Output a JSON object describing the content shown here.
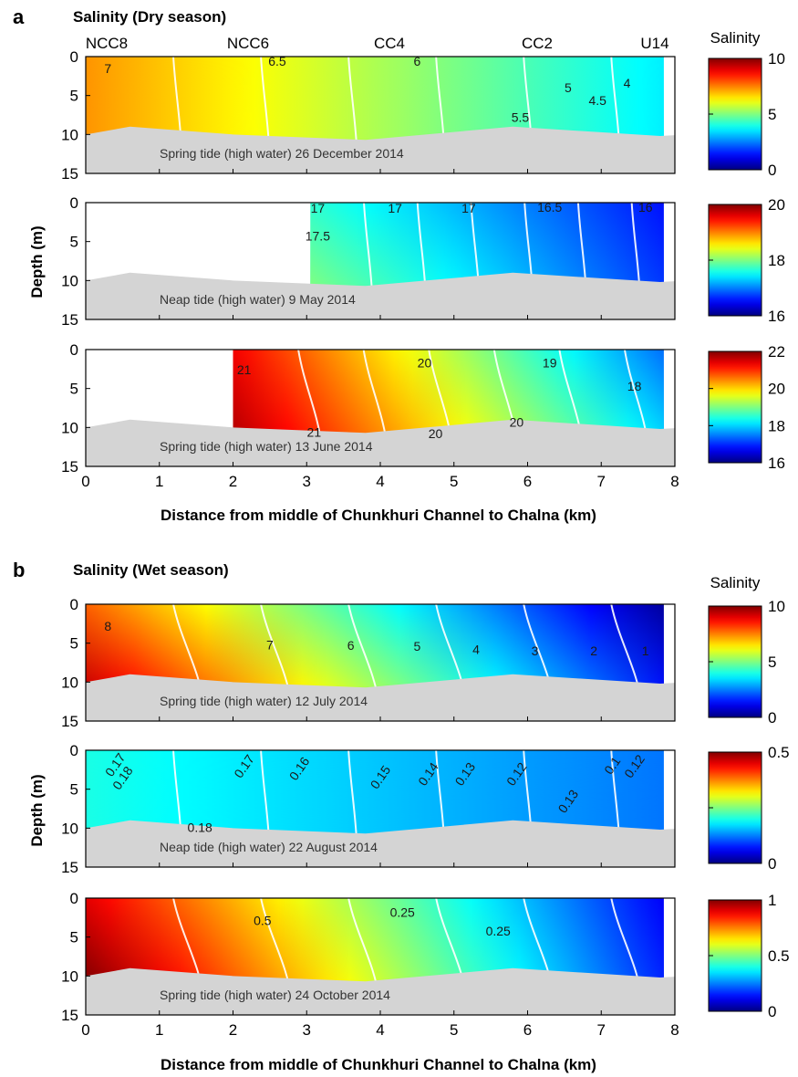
{
  "figure": {
    "section_a": {
      "letter": "a",
      "title": "Salinity (Dry season)"
    },
    "section_b": {
      "letter": "b",
      "title": "Salinity (Wet season)"
    },
    "stations": [
      "NCC8",
      "NCC6",
      "CC4",
      "CC2",
      "U14"
    ],
    "depth_label": "Depth (m)",
    "distance_label": "Distance from middle of Chunkhuri Channel to Chalna (km)",
    "colorbar_title": "Salinity"
  },
  "chart_data": [
    {
      "type": "heatmap",
      "group": "a",
      "title": "Spring tide (high water) 26 December 2014",
      "xlim": [
        0,
        8
      ],
      "ylim": [
        15,
        0
      ],
      "xticks": [
        "0",
        "1",
        "2",
        "3",
        "4",
        "5",
        "6",
        "7",
        "8"
      ],
      "yticks": [
        "0",
        "5",
        "10",
        "15"
      ],
      "data_xrange": [
        0,
        7.85
      ],
      "left_bottom": 9.5,
      "right_bottom": 8.5,
      "cmin": 0,
      "cmax": 10,
      "colorbar_ticks": [
        "10",
        "5",
        "0"
      ],
      "surface": {
        "x": [
          0,
          7.85
        ],
        "values": [
          7.3,
          3.6
        ]
      },
      "bottom": {
        "x": [
          0,
          7.85
        ],
        "values": [
          7.3,
          3.6
        ]
      },
      "contour_labels": [
        {
          "text": "7",
          "x": 0.3,
          "y": 1.5
        },
        {
          "text": "6.5",
          "x": 2.6,
          "y": 0.6
        },
        {
          "text": "6",
          "x": 4.5,
          "y": 0.6
        },
        {
          "text": "5.5",
          "x": 5.9,
          "y": 7.8
        },
        {
          "text": "5",
          "x": 6.55,
          "y": 4.0
        },
        {
          "text": "4.5",
          "x": 6.95,
          "y": 5.6
        },
        {
          "text": "4",
          "x": 7.35,
          "y": 3.4
        }
      ],
      "seabed": {
        "x": [
          0,
          0.6,
          2.0,
          3.8,
          5.8,
          7.8,
          8.0
        ],
        "depth": [
          10.0,
          9.0,
          10.0,
          10.7,
          9.0,
          10.2,
          10.1
        ]
      }
    },
    {
      "type": "heatmap",
      "group": "a",
      "title": "Neap tide (high water) 9 May 2014",
      "xlim": [
        0,
        8
      ],
      "ylim": [
        15,
        0
      ],
      "xticks": [
        "0",
        "1",
        "2",
        "3",
        "4",
        "5",
        "6",
        "7",
        "8"
      ],
      "yticks": [
        "0",
        "5",
        "10",
        "15"
      ],
      "data_xrange": [
        3.05,
        7.85
      ],
      "left_bottom": 10.3,
      "right_bottom": 10.3,
      "cmin": 15,
      "cmax": 20,
      "colorbar_ticks": [
        "20",
        "18",
        "16"
      ],
      "surface": {
        "x": [
          3.05,
          7.85
        ],
        "values": [
          17.1,
          15.7
        ]
      },
      "bottom": {
        "x": [
          3.05,
          7.85
        ],
        "values": [
          17.5,
          15.9
        ]
      },
      "contour_labels": [
        {
          "text": "17",
          "x": 3.15,
          "y": 0.7
        },
        {
          "text": "17",
          "x": 4.2,
          "y": 0.7
        },
        {
          "text": "17",
          "x": 5.2,
          "y": 0.7
        },
        {
          "text": "16.5",
          "x": 6.3,
          "y": 0.6
        },
        {
          "text": "16",
          "x": 7.6,
          "y": 0.6
        },
        {
          "text": "17.5",
          "x": 3.15,
          "y": 4.3
        }
      ],
      "seabed": {
        "x": [
          0,
          0.6,
          2.0,
          3.8,
          5.8,
          7.8,
          8.0
        ],
        "depth": [
          10.0,
          9.0,
          10.0,
          10.7,
          9.0,
          10.2,
          10.1
        ]
      }
    },
    {
      "type": "heatmap",
      "group": "a",
      "title": "Spring tide (high water) 13 June 2014",
      "xlim": [
        0,
        8
      ],
      "ylim": [
        15,
        0
      ],
      "xticks": [
        "0",
        "1",
        "2",
        "3",
        "4",
        "5",
        "6",
        "7",
        "8"
      ],
      "yticks": [
        "0",
        "5",
        "10",
        "15"
      ],
      "data_xrange": [
        2.0,
        7.85
      ],
      "left_bottom": 10.3,
      "right_bottom": 10.3,
      "cmin": 16,
      "cmax": 22,
      "colorbar_ticks": [
        "22",
        "20",
        "18",
        "16"
      ],
      "surface": {
        "x": [
          2.0,
          7.85
        ],
        "values": [
          21.3,
          17.4
        ]
      },
      "bottom": {
        "x": [
          2.0,
          7.85
        ],
        "values": [
          21.7,
          18.0
        ]
      },
      "contour_labels": [
        {
          "text": "21",
          "x": 2.15,
          "y": 2.6
        },
        {
          "text": "20",
          "x": 4.6,
          "y": 1.7
        },
        {
          "text": "19",
          "x": 6.3,
          "y": 1.7
        },
        {
          "text": "18",
          "x": 7.45,
          "y": 4.7
        },
        {
          "text": "20",
          "x": 5.85,
          "y": 9.3
        },
        {
          "text": "21",
          "x": 3.1,
          "y": 10.6
        },
        {
          "text": "20",
          "x": 4.75,
          "y": 10.8
        }
      ],
      "seabed": {
        "x": [
          0,
          0.6,
          2.0,
          3.8,
          5.8,
          7.8,
          8.0
        ],
        "depth": [
          10.0,
          9.0,
          10.0,
          10.7,
          9.0,
          10.2,
          10.1
        ]
      }
    },
    {
      "type": "heatmap",
      "group": "b",
      "title": "Spring tide (high water) 12 July 2014",
      "xlim": [
        0,
        8
      ],
      "ylim": [
        15,
        0
      ],
      "xticks": [
        "0",
        "1",
        "2",
        "3",
        "4",
        "5",
        "6",
        "7",
        "8"
      ],
      "yticks": [
        "0",
        "5",
        "10",
        "15"
      ],
      "data_xrange": [
        0,
        7.85
      ],
      "left_bottom": 9.5,
      "right_bottom": 8.5,
      "cmin": 0,
      "cmax": 10,
      "colorbar_ticks": [
        "10",
        "5",
        "0"
      ],
      "surface": {
        "x": [
          0,
          7.85
        ],
        "values": [
          7.8,
          0.3
        ]
      },
      "bottom": {
        "x": [
          0,
          7.85
        ],
        "values": [
          9.3,
          1.4
        ]
      },
      "contour_labels": [
        {
          "text": "8",
          "x": 0.3,
          "y": 2.8
        },
        {
          "text": "7",
          "x": 2.5,
          "y": 5.2
        },
        {
          "text": "6",
          "x": 3.6,
          "y": 5.3
        },
        {
          "text": "5",
          "x": 4.5,
          "y": 5.4
        },
        {
          "text": "4",
          "x": 5.3,
          "y": 5.8
        },
        {
          "text": "3",
          "x": 6.1,
          "y": 6.0
        },
        {
          "text": "2",
          "x": 6.9,
          "y": 6.0
        },
        {
          "text": "1",
          "x": 7.6,
          "y": 6.0
        }
      ],
      "seabed": {
        "x": [
          0,
          0.6,
          2.0,
          3.8,
          5.8,
          7.8,
          8.0
        ],
        "depth": [
          10.0,
          9.0,
          10.0,
          10.7,
          9.0,
          10.2,
          10.1
        ]
      }
    },
    {
      "type": "heatmap",
      "group": "b",
      "title": "Neap tide (high water) 22 August 2014",
      "xlim": [
        0,
        8
      ],
      "ylim": [
        15,
        0
      ],
      "xticks": [
        "0",
        "1",
        "2",
        "3",
        "4",
        "5",
        "6",
        "7",
        "8"
      ],
      "yticks": [
        "0",
        "5",
        "10",
        "15"
      ],
      "data_xrange": [
        0,
        7.85
      ],
      "left_bottom": 9.5,
      "right_bottom": 9.5,
      "cmin": 0,
      "cmax": 0.5,
      "colorbar_ticks": [
        "0.5",
        "",
        "0"
      ],
      "surface": {
        "x": [
          0,
          7.85
        ],
        "values": [
          0.2,
          0.12
        ]
      },
      "bottom": {
        "x": [
          0,
          7.85
        ],
        "values": [
          0.2,
          0.12
        ]
      },
      "contour_labels": [
        {
          "text": "0.17",
          "x": 0.45,
          "y": 1.6,
          "rot": -55
        },
        {
          "text": "0.18",
          "x": 0.55,
          "y": 3.3,
          "rot": -55
        },
        {
          "text": "0.17",
          "x": 2.2,
          "y": 1.8,
          "rot": -55
        },
        {
          "text": "0.16",
          "x": 2.95,
          "y": 2.1,
          "rot": -55
        },
        {
          "text": "0.15",
          "x": 4.05,
          "y": 3.2,
          "rot": -55
        },
        {
          "text": "0.14",
          "x": 4.7,
          "y": 2.8,
          "rot": -55
        },
        {
          "text": "0.13",
          "x": 5.2,
          "y": 2.8,
          "rot": -55
        },
        {
          "text": "0.12",
          "x": 5.9,
          "y": 2.8,
          "rot": -55
        },
        {
          "text": "0.13",
          "x": 6.6,
          "y": 6.3,
          "rot": -55
        },
        {
          "text": "0.12",
          "x": 7.5,
          "y": 1.8,
          "rot": -55
        },
        {
          "text": "0.1",
          "x": 7.2,
          "y": 1.7,
          "rot": -55
        },
        {
          "text": "0.18",
          "x": 1.55,
          "y": 9.9
        }
      ],
      "seabed": {
        "x": [
          0,
          0.6,
          2.0,
          3.8,
          5.8,
          7.8,
          8.0
        ],
        "depth": [
          10.0,
          9.0,
          10.0,
          10.7,
          9.0,
          10.2,
          10.1
        ]
      }
    },
    {
      "type": "heatmap",
      "group": "b",
      "title": "Spring tide (high water) 24 October 2014",
      "xlim": [
        0,
        8
      ],
      "ylim": [
        15,
        0
      ],
      "xticks": [
        "0",
        "1",
        "2",
        "3",
        "4",
        "5",
        "6",
        "7",
        "8"
      ],
      "yticks": [
        "0",
        "5",
        "10",
        "15"
      ],
      "data_xrange": [
        0,
        7.85
      ],
      "left_bottom": 10.3,
      "right_bottom": 10.3,
      "cmin": 0,
      "cmax": 1,
      "colorbar_ticks": [
        "1",
        "0.5",
        "0"
      ],
      "surface": {
        "x": [
          0,
          7.85
        ],
        "values": [
          0.9,
          0.12
        ]
      },
      "bottom": {
        "x": [
          0,
          7.85
        ],
        "values": [
          1.0,
          0.16
        ]
      },
      "contour_labels": [
        {
          "text": "0.5",
          "x": 2.4,
          "y": 2.9
        },
        {
          "text": "0.25",
          "x": 4.3,
          "y": 1.8
        },
        {
          "text": "0.25",
          "x": 5.6,
          "y": 4.2
        }
      ],
      "seabed": {
        "x": [
          0,
          0.6,
          2.0,
          3.8,
          5.8,
          7.8,
          8.0
        ],
        "depth": [
          10.0,
          9.0,
          10.0,
          10.7,
          9.0,
          10.2,
          10.1
        ]
      }
    }
  ]
}
